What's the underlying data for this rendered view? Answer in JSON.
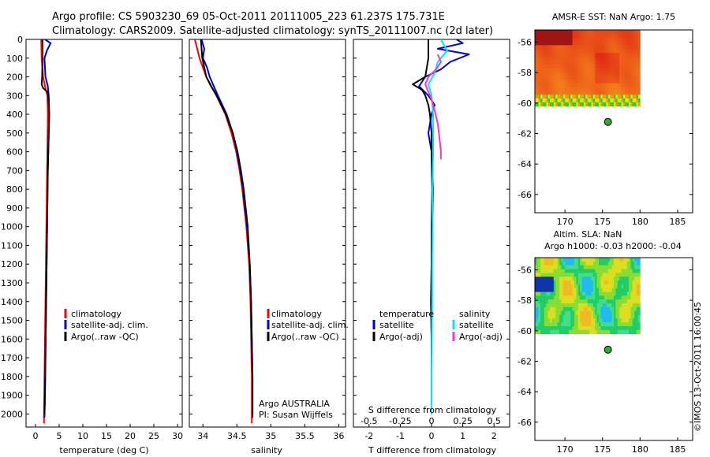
{
  "header": {
    "line1": "Argo profile: CS 5903230_69 05-Oct-2011 20111005_223 61.237S 175.731E",
    "line2": "Climatology: CARS2009. Satellite-adjusted climatology: synTS_20111007.nc (2d later)"
  },
  "footer_stamp": "©IMOS 13-Oct-2011 16:00:45",
  "colors": {
    "climatology": "#ff0000",
    "satellite": "#0000cc",
    "argo": "#000000",
    "sat_salinity": "#00e5ff",
    "argo_salinity": "#ff33cc",
    "float_marker": "#33aa33"
  },
  "chart_data": [
    {
      "id": "temperature",
      "type": "line",
      "xlabel": "temperature (deg C)",
      "ylabel": "",
      "xlim": [
        -2,
        31
      ],
      "ylim": [
        2070,
        0
      ],
      "x_ticks": [
        "0",
        "5",
        "10",
        "15",
        "20",
        "25",
        "30"
      ],
      "x_tick_values": [
        0,
        5,
        10,
        15,
        20,
        25,
        30
      ],
      "y_ticks": [
        "0",
        "100",
        "200",
        "300",
        "400",
        "500",
        "600",
        "700",
        "800",
        "900",
        "1000",
        "1100",
        "1200",
        "1300",
        "1400",
        "1500",
        "1600",
        "1700",
        "1800",
        "1900",
        "2000"
      ],
      "y_tick_values": [
        0,
        100,
        200,
        300,
        400,
        500,
        600,
        700,
        800,
        900,
        1000,
        1100,
        1200,
        1300,
        1400,
        1500,
        1600,
        1700,
        1800,
        1900,
        2000
      ],
      "legend": [
        "climatology",
        "satellite-adj. clim.",
        "Argo(..raw -QC)"
      ],
      "series": [
        {
          "name": "climatology",
          "color": "#ff0000",
          "depth": [
            0,
            100,
            200,
            250,
            300,
            400,
            600,
            800,
            1000,
            1200,
            1400,
            1600,
            1800,
            2000,
            2050
          ],
          "values": [
            1.2,
            1.3,
            1.6,
            2.0,
            2.5,
            2.6,
            2.5,
            2.4,
            2.3,
            2.2,
            2.1,
            2.0,
            1.9,
            1.8,
            1.8
          ]
        },
        {
          "name": "satellite-adj. clim.",
          "color": "#0000cc",
          "depth": [
            0,
            20,
            60,
            100,
            150,
            200,
            250,
            300,
            400,
            500,
            700,
            900,
            1100,
            1300,
            1500,
            1700,
            1900,
            2020
          ],
          "values": [
            2.0,
            3.2,
            2.4,
            1.9,
            2.0,
            2.1,
            2.6,
            2.8,
            2.9,
            2.8,
            2.6,
            2.5,
            2.4,
            2.3,
            2.2,
            2.1,
            2.0,
            1.9
          ]
        },
        {
          "name": "Argo(..raw -QC)",
          "color": "#000000",
          "depth": [
            0,
            100,
            200,
            240,
            260,
            280,
            300,
            400,
            500,
            700,
            900,
            1100,
            1300,
            1500,
            1700,
            1900,
            2000
          ],
          "values": [
            1.5,
            1.5,
            1.4,
            1.3,
            1.6,
            2.5,
            2.7,
            2.9,
            2.8,
            2.6,
            2.5,
            2.4,
            2.3,
            2.2,
            2.1,
            2.0,
            1.9
          ]
        }
      ]
    },
    {
      "id": "salinity",
      "type": "line",
      "xlabel": "salinity",
      "ylabel": "",
      "xlim": [
        33.8,
        36.1
      ],
      "ylim": [
        2070,
        0
      ],
      "x_ticks": [
        "34",
        "34.5",
        "35",
        "35.5",
        "36"
      ],
      "x_tick_values": [
        34,
        34.5,
        35,
        35.5,
        36
      ],
      "legend": [
        "climatology",
        "satellite-adj. clim.",
        "Argo(..raw -QC)"
      ],
      "annotation": [
        "Argo AUSTRALIA",
        "PI: Susan Wijffels"
      ],
      "series": [
        {
          "name": "climatology",
          "color": "#ff0000",
          "depth": [
            0,
            100,
            200,
            300,
            400,
            500,
            600,
            700,
            800,
            1000,
            1200,
            1400,
            1600,
            1800,
            2000,
            2050
          ],
          "values": [
            33.88,
            33.95,
            34.05,
            34.2,
            34.33,
            34.42,
            34.49,
            34.54,
            34.58,
            34.64,
            34.68,
            34.7,
            34.71,
            34.72,
            34.72,
            34.72
          ]
        },
        {
          "name": "satellite-adj. clim.",
          "color": "#0000cc",
          "depth": [
            0,
            50,
            100,
            150,
            200,
            300,
            400,
            500,
            600,
            700,
            800,
            1000,
            1200,
            1400,
            1600,
            1800,
            2000,
            2020
          ],
          "values": [
            33.98,
            34.02,
            34.0,
            34.06,
            34.1,
            34.22,
            34.35,
            34.44,
            34.5,
            34.55,
            34.59,
            34.65,
            34.69,
            34.71,
            34.72,
            34.73,
            34.73,
            34.73
          ]
        },
        {
          "name": "Argo(..raw -QC)",
          "color": "#000000",
          "depth": [
            0,
            100,
            200,
            250,
            300,
            400,
            500,
            600,
            700,
            800,
            1000,
            1200,
            1400,
            1600,
            1800,
            2000
          ],
          "values": [
            33.97,
            33.99,
            34.05,
            34.12,
            34.2,
            34.34,
            34.44,
            34.51,
            34.56,
            34.6,
            34.66,
            34.69,
            34.71,
            34.72,
            34.73,
            34.73
          ]
        }
      ]
    },
    {
      "id": "difference",
      "type": "line",
      "xlabel": "T difference from climatology",
      "xlabel2": "S difference from climatology",
      "xlim": [
        -2.5,
        2.5
      ],
      "ylim": [
        2070,
        0
      ],
      "x_ticks": [
        "-2",
        "-1",
        "0",
        "1",
        "2"
      ],
      "x_tick_values": [
        -2,
        -1,
        0,
        1,
        2
      ],
      "x2_ticks": [
        "-0.5",
        "-0.25",
        "0",
        "0.25",
        "0.5"
      ],
      "x2_tick_values": [
        -2,
        -1,
        0,
        1,
        2
      ],
      "legend_left_title": "temperature",
      "legend_right_title": "salinity",
      "legend": [
        "satellite",
        "Argo(-adj)",
        "satellite",
        "Argo(-adj)"
      ],
      "series": [
        {
          "name": "satellite",
          "group": "temperature",
          "color": "#0000cc",
          "depth": [
            0,
            20,
            50,
            80,
            120,
            160,
            200,
            250,
            300,
            350,
            400,
            500,
            600,
            800,
            1000,
            1200,
            1400,
            1600,
            1800,
            2000
          ],
          "values": [
            0.8,
            1.0,
            0.2,
            1.2,
            0.6,
            0.3,
            -0.2,
            -0.4,
            -0.1,
            0.1,
            0.0,
            -0.1,
            0.0,
            0.05,
            0.02,
            0.0,
            -0.02,
            0.0,
            0.0,
            0.0
          ]
        },
        {
          "name": "Argo(-adj)",
          "group": "temperature",
          "color": "#000000",
          "depth": [
            0,
            100,
            200,
            240,
            270,
            300,
            350,
            400,
            500,
            600,
            800,
            1000,
            1200,
            1400,
            1600,
            1800,
            2000
          ],
          "values": [
            -0.1,
            -0.1,
            -0.2,
            -0.6,
            -0.3,
            -0.2,
            -0.1,
            -0.05,
            0.0,
            0.0,
            0.02,
            0.0,
            0.0,
            0.0,
            0.0,
            0.0,
            0.0
          ]
        },
        {
          "name": "satellite",
          "group": "salinity",
          "color": "#00e5ff",
          "depth": [
            0,
            60,
            120,
            180,
            240,
            300,
            400,
            600,
            800,
            1000,
            1200,
            1400,
            1600,
            1800,
            2000
          ],
          "values": [
            0.3,
            0.5,
            0.2,
            0.1,
            -0.1,
            0.0,
            0.05,
            0.05,
            0.03,
            0.03,
            0.02,
            0.02,
            0.01,
            0.0,
            0.0
          ]
        },
        {
          "name": "Argo(-adj)",
          "group": "salinity",
          "color": "#ff33cc",
          "depth": [
            80,
            120,
            160,
            200,
            240,
            280,
            320,
            380,
            450,
            520,
            600,
            640
          ],
          "values": [
            0.2,
            0.3,
            0.15,
            -0.1,
            -0.2,
            -0.1,
            0.0,
            0.1,
            0.2,
            0.25,
            0.3,
            0.3
          ]
        }
      ]
    },
    {
      "id": "sst_map",
      "type": "heatmap",
      "title": "AMSR-E SST: NaN Argo: 1.75",
      "xlim": [
        166,
        187
      ],
      "ylim": [
        -67.2,
        -55.2
      ],
      "x_ticks": [
        "170",
        "175",
        "180",
        "185"
      ],
      "x_tick_values": [
        170,
        175,
        180,
        185
      ],
      "y_ticks": [
        "-56",
        "-58",
        "-60",
        "-62",
        "-64",
        "-66"
      ],
      "y_tick_values": [
        -56,
        -58,
        -60,
        -62,
        -64,
        -66
      ],
      "field_extent": {
        "lon": [
          166,
          180
        ],
        "lat": [
          -60,
          -55.2
        ]
      },
      "float_position": {
        "lon": 175.731,
        "lat": -61.237
      }
    },
    {
      "id": "sla_map",
      "type": "heatmap",
      "title": "Altim. SLA: NaN",
      "subtitle": "Argo h1000: -0.03 h2000: -0.04",
      "xlim": [
        166,
        187
      ],
      "ylim": [
        -67.2,
        -55.2
      ],
      "x_ticks": [
        "170",
        "175",
        "180",
        "185"
      ],
      "x_tick_values": [
        170,
        175,
        180,
        185
      ],
      "y_ticks": [
        "-56",
        "-58",
        "-60",
        "-62",
        "-64",
        "-66"
      ],
      "y_tick_values": [
        -56,
        -58,
        -60,
        -62,
        -64,
        -66
      ],
      "field_extent": {
        "lon": [
          166,
          180
        ],
        "lat": [
          -60,
          -55.2
        ]
      },
      "float_position": {
        "lon": 175.731,
        "lat": -61.237
      }
    }
  ]
}
